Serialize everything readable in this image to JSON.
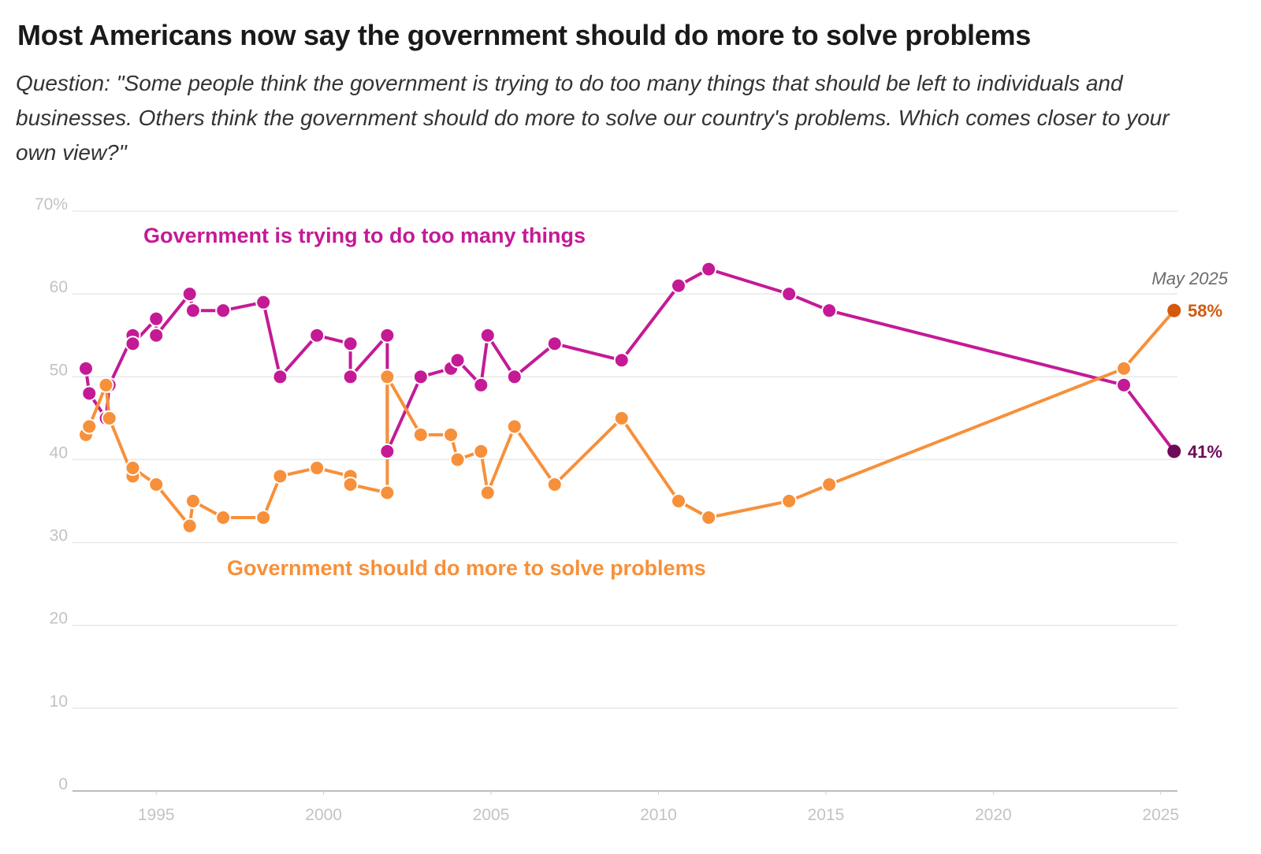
{
  "title": "Most Americans now say the government should do more to solve problems",
  "subtitle": "Question: \"Some people think the government is trying to do too many things that should be left to individuals and businesses. Others think the government should do more to solve our country's problems. Which comes closer to your own view?\"",
  "chart_data": {
    "type": "line",
    "ylim": [
      0,
      70
    ],
    "xlim": [
      1992.5,
      2025.5
    ],
    "y_ticks": [
      0,
      10,
      20,
      30,
      40,
      50,
      60,
      70
    ],
    "y_tick_labels": [
      "0",
      "10",
      "20",
      "30",
      "40",
      "50",
      "60",
      "70%"
    ],
    "x_ticks": [
      1995,
      2000,
      2005,
      2010,
      2015,
      2020,
      2025
    ],
    "x_tick_labels": [
      "1995",
      "2000",
      "2005",
      "2010",
      "2015",
      "2020",
      "2025"
    ],
    "grid": true,
    "latest_date_label": "May 2025",
    "series": [
      {
        "name": "Government is trying to do too many things",
        "color": "#c41a96",
        "end_color": "#6e0a57",
        "end_label": "41%",
        "points": [
          [
            1992.9,
            51
          ],
          [
            1993.0,
            48
          ],
          [
            1993.5,
            45
          ],
          [
            1993.6,
            49
          ],
          [
            1994.3,
            55
          ],
          [
            1994.3,
            54
          ],
          [
            1995.0,
            57
          ],
          [
            1995.0,
            55
          ],
          [
            1996.0,
            60
          ],
          [
            1996.1,
            58
          ],
          [
            1997.0,
            58
          ],
          [
            1998.2,
            59
          ],
          [
            1998.7,
            50
          ],
          [
            1999.8,
            55
          ],
          [
            2000.8,
            54
          ],
          [
            2000.8,
            50
          ],
          [
            2001.9,
            55
          ],
          [
            2001.9,
            41
          ],
          [
            2002.9,
            50
          ],
          [
            2003.8,
            51
          ],
          [
            2004.0,
            52
          ],
          [
            2004.7,
            49
          ],
          [
            2004.9,
            55
          ],
          [
            2005.7,
            50
          ],
          [
            2006.9,
            54
          ],
          [
            2008.9,
            52
          ],
          [
            2010.6,
            61
          ],
          [
            2011.5,
            63
          ],
          [
            2013.9,
            60
          ],
          [
            2015.1,
            58
          ],
          [
            2023.9,
            49
          ],
          [
            2025.4,
            41
          ]
        ]
      },
      {
        "name": "Government should do more to solve problems",
        "color": "#f7903a",
        "end_color": "#d2590e",
        "end_label": "58%",
        "points": [
          [
            1992.9,
            43
          ],
          [
            1993.0,
            44
          ],
          [
            1993.5,
            49
          ],
          [
            1993.6,
            45
          ],
          [
            1994.3,
            38
          ],
          [
            1994.3,
            39
          ],
          [
            1995.0,
            37
          ],
          [
            1996.0,
            32
          ],
          [
            1996.1,
            35
          ],
          [
            1997.0,
            33
          ],
          [
            1998.2,
            33
          ],
          [
            1998.7,
            38
          ],
          [
            1999.8,
            39
          ],
          [
            2000.8,
            38
          ],
          [
            2000.8,
            37
          ],
          [
            2001.9,
            36
          ],
          [
            2001.9,
            50
          ],
          [
            2002.9,
            43
          ],
          [
            2003.8,
            43
          ],
          [
            2004.0,
            40
          ],
          [
            2004.7,
            41
          ],
          [
            2004.9,
            36
          ],
          [
            2005.7,
            44
          ],
          [
            2006.9,
            37
          ],
          [
            2008.9,
            45
          ],
          [
            2010.6,
            35
          ],
          [
            2011.5,
            33
          ],
          [
            2013.9,
            35
          ],
          [
            2015.1,
            37
          ],
          [
            2023.9,
            51
          ],
          [
            2025.4,
            58
          ]
        ]
      }
    ]
  }
}
